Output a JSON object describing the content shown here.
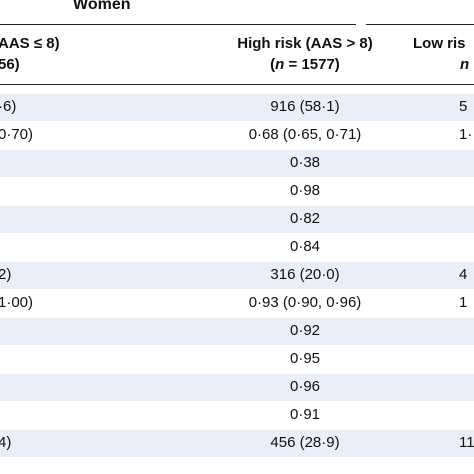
{
  "group_title": "Women",
  "columns": {
    "left_header_line1": "AAS ≤ 8)",
    "left_header_line2": "56)",
    "mid_header_line1": "High risk (AAS > 8)",
    "mid_header_line2_n": "n",
    "mid_header_line2_rest": " = 1577)",
    "right_header_line1": "Low ris",
    "right_header_line2": "n"
  },
  "rows": [
    {
      "left": "·6)",
      "mid": "916 (58·1)",
      "right": "5"
    },
    {
      "left": "0·70)",
      "mid": "0·68 (0·65, 0·71)",
      "right": "1·"
    },
    {
      "left": "",
      "mid": "0·38",
      "right": ""
    },
    {
      "left": "",
      "mid": "0·98",
      "right": ""
    },
    {
      "left": "",
      "mid": "0·82",
      "right": ""
    },
    {
      "left": "",
      "mid": "0·84",
      "right": ""
    },
    {
      "left": "2)",
      "mid": "316 (20·0)",
      "right": "4"
    },
    {
      "left": "1·00)",
      "mid": "0·93 (0·90, 0·96)",
      "right": "1"
    },
    {
      "left": "",
      "mid": "0·92",
      "right": ""
    },
    {
      "left": "",
      "mid": "0·95",
      "right": ""
    },
    {
      "left": "",
      "mid": "0·96",
      "right": ""
    },
    {
      "left": "",
      "mid": "0·91",
      "right": ""
    },
    {
      "left": "4)",
      "mid": "456 (28·9)",
      "right": "11"
    }
  ],
  "colors": {
    "shaded_row": "#e9eef8",
    "rule": "#222222",
    "text": "#111111"
  }
}
